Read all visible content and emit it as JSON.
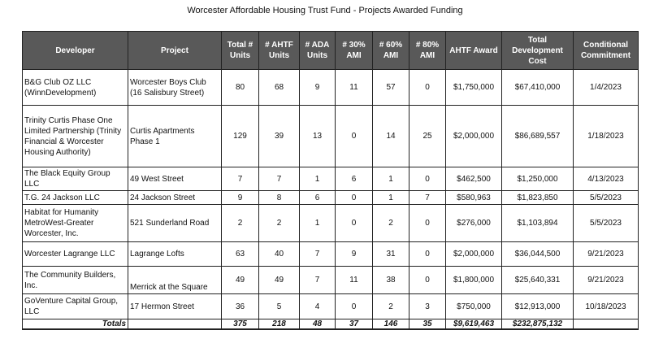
{
  "title": "Worcester Affordable Housing Trust Fund - Projects Awarded Funding",
  "columns": [
    "Developer",
    "Project",
    "Total # Units",
    "# AHTF Units",
    "# ADA Units",
    "# 30% AMI",
    "# 60% AMI",
    "# 80% AMI",
    "AHTF Award",
    "Total Development Cost",
    "Conditional Commitment"
  ],
  "rows": [
    [
      "B&G Club OZ LLC (WinnDevelopment)",
      "Worcester Boys Club (16 Salisbury Street)",
      "80",
      "68",
      "9",
      "11",
      "57",
      "0",
      "$1,750,000",
      "$67,410,000",
      "1/4/2023"
    ],
    [
      "Trinity Curtis Phase One Limited Partnership (Trinity Financial & Worcester Housing Authority)",
      "Curtis Apartments Phase 1",
      "129",
      "39",
      "13",
      "0",
      "14",
      "25",
      "$2,000,000",
      "$86,689,557",
      "1/18/2023"
    ],
    [
      "The Black Equity Group LLC",
      "49 West Street",
      "7",
      "7",
      "1",
      "6",
      "1",
      "0",
      "$462,500",
      "$1,250,000",
      "4/13/2023"
    ],
    [
      "T.G. 24 Jackson LLC",
      "24 Jackson Street",
      "9",
      "8",
      "6",
      "0",
      "1",
      "7",
      "$580,963",
      "$1,823,850",
      "5/5/2023"
    ],
    [
      "Habitat for Humanity MetroWest-Greater Worcester, Inc.",
      "521 Sunderland Road",
      "2",
      "2",
      "1",
      "0",
      "2",
      "0",
      "$276,000",
      "$1,103,894",
      "5/5/2023"
    ],
    [
      "Worcester Lagrange LLC",
      "Lagrange Lofts",
      "63",
      "40",
      "7",
      "9",
      "31",
      "0",
      "$2,000,000",
      "$36,044,500",
      "9/21/2023"
    ],
    [
      "The Community Builders, Inc.",
      "Merrick at the Square",
      "49",
      "49",
      "7",
      "11",
      "38",
      "0",
      "$1,800,000",
      "$25,640,331",
      "9/21/2023"
    ],
    [
      "GoVenture Capital Group, LLC",
      "17 Hermon Street",
      "36",
      "5",
      "4",
      "0",
      "2",
      "3",
      "$750,000",
      "$12,913,000",
      "10/18/2023"
    ]
  ],
  "totals": [
    "Totals",
    "",
    "375",
    "218",
    "48",
    "37",
    "146",
    "35",
    "$9,619,463",
    "$232,875,132",
    ""
  ],
  "colors": {
    "header_bg": "#595959",
    "header_text": "#ffffff"
  }
}
